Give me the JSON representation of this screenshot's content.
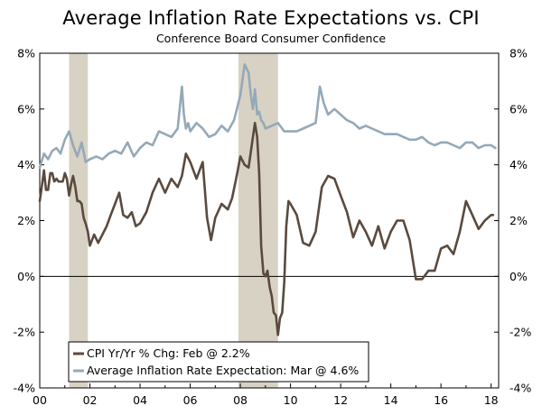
{
  "chart_data": {
    "type": "line",
    "title": "Average Inflation Rate Expectations vs. CPI",
    "subtitle": "Conference Board Consumer Confidence",
    "xlim": [
      2000,
      2018.3
    ],
    "ylim": [
      -4,
      8
    ],
    "y_ticks": [
      -4,
      -2,
      0,
      2,
      4,
      6,
      8
    ],
    "y_tick_labels_left": [
      "-4%",
      "-2%",
      "0%",
      "2%",
      "4%",
      "6%",
      "8%"
    ],
    "y_tick_labels_right": [
      "-4%",
      "-2%",
      "0%",
      "2%",
      "4%",
      "6%",
      "8%"
    ],
    "x_tick_years": [
      2000,
      2002,
      2004,
      2006,
      2008,
      2010,
      2012,
      2014,
      2016,
      2018
    ],
    "x_tick_labels": [
      "00",
      "02",
      "04",
      "06",
      "08",
      "10",
      "12",
      "14",
      "16",
      "18"
    ],
    "recessions": [
      [
        2001.17,
        2001.92
      ],
      [
        2007.92,
        2009.5
      ]
    ],
    "colors": {
      "cpi": "#5a4a3e",
      "expectation": "#94a9b8",
      "recession": "#d8d2c4"
    },
    "legend_position": "bottom-left",
    "series": [
      {
        "name": "CPI Yr/Yr % Chg: Feb @ 2.2%",
        "color": "#5a4a3e",
        "x": [
          2000.0,
          2000.08,
          2000.17,
          2000.25,
          2000.33,
          2000.42,
          2000.5,
          2000.58,
          2000.67,
          2000.75,
          2000.83,
          2000.92,
          2001.0,
          2001.08,
          2001.17,
          2001.25,
          2001.33,
          2001.42,
          2001.5,
          2001.58,
          2001.67,
          2001.75,
          2001.83,
          2001.92,
          2002.0,
          2002.17,
          2002.33,
          2002.5,
          2002.67,
          2002.83,
          2003.0,
          2003.17,
          2003.33,
          2003.5,
          2003.67,
          2003.83,
          2004.0,
          2004.25,
          2004.5,
          2004.75,
          2005.0,
          2005.25,
          2005.5,
          2005.67,
          2005.83,
          2006.0,
          2006.25,
          2006.5,
          2006.67,
          2006.83,
          2007.0,
          2007.25,
          2007.5,
          2007.67,
          2007.83,
          2008.0,
          2008.17,
          2008.33,
          2008.5,
          2008.58,
          2008.67,
          2008.75,
          2008.83,
          2008.92,
          2009.0,
          2009.08,
          2009.17,
          2009.25,
          2009.33,
          2009.42,
          2009.5,
          2009.58,
          2009.67,
          2009.75,
          2009.83,
          2009.92,
          2010.0,
          2010.25,
          2010.5,
          2010.75,
          2011.0,
          2011.25,
          2011.5,
          2011.75,
          2012.0,
          2012.25,
          2012.5,
          2012.75,
          2013.0,
          2013.25,
          2013.5,
          2013.75,
          2014.0,
          2014.25,
          2014.5,
          2014.75,
          2015.0,
          2015.25,
          2015.5,
          2015.75,
          2016.0,
          2016.25,
          2016.5,
          2016.75,
          2017.0,
          2017.25,
          2017.5,
          2017.75,
          2018.0,
          2018.08
        ],
        "values": [
          2.7,
          3.2,
          3.8,
          3.1,
          3.1,
          3.7,
          3.7,
          3.4,
          3.5,
          3.4,
          3.4,
          3.4,
          3.7,
          3.5,
          2.9,
          3.3,
          3.6,
          3.2,
          2.7,
          2.7,
          2.6,
          2.1,
          1.9,
          1.6,
          1.1,
          1.5,
          1.2,
          1.5,
          1.8,
          2.2,
          2.6,
          3.0,
          2.2,
          2.1,
          2.3,
          1.8,
          1.9,
          2.3,
          3.0,
          3.5,
          3.0,
          3.5,
          3.2,
          3.6,
          4.4,
          4.1,
          3.5,
          4.1,
          2.1,
          1.3,
          2.1,
          2.6,
          2.4,
          2.8,
          3.5,
          4.3,
          4.0,
          3.9,
          5.0,
          5.5,
          5.0,
          3.7,
          1.1,
          0.1,
          0.0,
          0.2,
          -0.4,
          -0.7,
          -1.3,
          -1.4,
          -2.1,
          -1.5,
          -1.3,
          -0.2,
          1.8,
          2.7,
          2.6,
          2.2,
          1.2,
          1.1,
          1.6,
          3.2,
          3.6,
          3.5,
          2.9,
          2.3,
          1.4,
          2.0,
          1.6,
          1.1,
          1.8,
          1.0,
          1.6,
          2.0,
          2.0,
          1.3,
          -0.1,
          -0.1,
          0.2,
          0.2,
          1.0,
          1.1,
          0.8,
          1.6,
          2.7,
          2.2,
          1.7,
          2.0,
          2.2,
          2.2
        ],
        "legend_label": "CPI Yr/Yr % Chg: Feb @ 2.2%"
      },
      {
        "name": "Average Inflation Rate Expectation: Mar @ 4.6%",
        "color": "#94a9b8",
        "x": [
          2000.0,
          2000.17,
          2000.33,
          2000.5,
          2000.67,
          2000.83,
          2001.0,
          2001.17,
          2001.33,
          2001.5,
          2001.67,
          2001.83,
          2002.0,
          2002.25,
          2002.5,
          2002.75,
          2003.0,
          2003.25,
          2003.5,
          2003.75,
          2004.0,
          2004.25,
          2004.5,
          2004.75,
          2005.0,
          2005.25,
          2005.5,
          2005.67,
          2005.75,
          2005.83,
          2005.92,
          2006.0,
          2006.25,
          2006.5,
          2006.75,
          2007.0,
          2007.25,
          2007.5,
          2007.75,
          2008.0,
          2008.17,
          2008.33,
          2008.42,
          2008.5,
          2008.58,
          2008.67,
          2008.75,
          2008.83,
          2008.92,
          2009.0,
          2009.25,
          2009.5,
          2009.75,
          2010.0,
          2010.25,
          2010.5,
          2010.75,
          2011.0,
          2011.17,
          2011.33,
          2011.5,
          2011.75,
          2012.0,
          2012.25,
          2012.5,
          2012.75,
          2013.0,
          2013.25,
          2013.5,
          2013.75,
          2014.0,
          2014.25,
          2014.5,
          2014.75,
          2015.0,
          2015.25,
          2015.5,
          2015.75,
          2016.0,
          2016.25,
          2016.5,
          2016.75,
          2017.0,
          2017.25,
          2017.5,
          2017.75,
          2018.0,
          2018.17
        ],
        "values": [
          3.9,
          4.4,
          4.2,
          4.5,
          4.6,
          4.4,
          4.9,
          5.2,
          4.7,
          4.3,
          4.8,
          4.1,
          4.2,
          4.3,
          4.2,
          4.4,
          4.5,
          4.4,
          4.8,
          4.3,
          4.6,
          4.8,
          4.7,
          5.2,
          5.1,
          5.0,
          5.3,
          6.8,
          5.8,
          5.3,
          5.5,
          5.2,
          5.5,
          5.3,
          5.0,
          5.1,
          5.4,
          5.2,
          5.6,
          6.5,
          7.6,
          7.3,
          6.5,
          6.0,
          6.7,
          5.8,
          5.9,
          5.6,
          5.5,
          5.3,
          5.4,
          5.5,
          5.2,
          5.2,
          5.2,
          5.3,
          5.4,
          5.5,
          6.8,
          6.2,
          5.8,
          6.0,
          5.8,
          5.6,
          5.5,
          5.3,
          5.4,
          5.3,
          5.2,
          5.1,
          5.1,
          5.1,
          5.0,
          4.9,
          4.9,
          5.0,
          4.8,
          4.7,
          4.8,
          4.8,
          4.7,
          4.6,
          4.8,
          4.8,
          4.6,
          4.7,
          4.7,
          4.6
        ],
        "legend_label": "Average Inflation Rate Expectation: Mar @ 4.6%"
      }
    ]
  }
}
